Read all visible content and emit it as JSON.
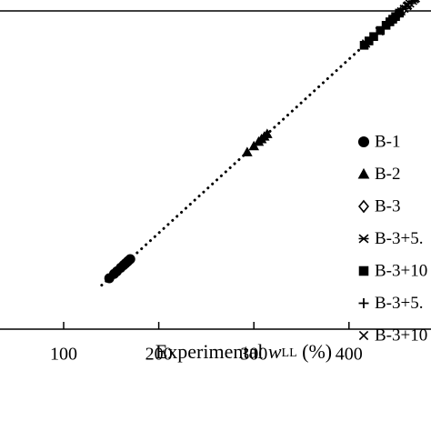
{
  "chart_data": {
    "type": "scatter",
    "xlabel": {
      "prefix": "Experimental ",
      "variable": "w",
      "subscript": "LL",
      "suffix": " (%)"
    },
    "xlim": [
      0,
      480
    ],
    "ylim": [
      0,
      480
    ],
    "x_ticks": [
      100,
      200,
      300,
      400
    ],
    "grid": false,
    "legend_position": "right",
    "trend_line": {
      "style": "dotted",
      "x": [
        140,
        475
      ],
      "y": [
        140,
        475
      ]
    },
    "series": [
      {
        "name": "B-1",
        "marker": "circle-filled",
        "points": [
          [
            148,
            148
          ],
          [
            153,
            153
          ],
          [
            156,
            156
          ],
          [
            160,
            160
          ],
          [
            163,
            163
          ],
          [
            165,
            165
          ],
          [
            167,
            167
          ],
          [
            168,
            168
          ],
          [
            170,
            170
          ]
        ]
      },
      {
        "name": "B-2",
        "marker": "triangle-filled",
        "points": [
          [
            293,
            293
          ],
          [
            300,
            300
          ],
          [
            305,
            305
          ],
          [
            308,
            308
          ],
          [
            311,
            311
          ],
          [
            314,
            314
          ]
        ]
      },
      {
        "name": "B-3",
        "marker": "diamond-open",
        "points": [
          [
            446,
            446
          ],
          [
            450,
            450
          ],
          [
            456,
            456
          ]
        ]
      },
      {
        "name": "B-3+5.",
        "marker": "asterisk",
        "points": [
          [
            458,
            458
          ],
          [
            461,
            461
          ],
          [
            464,
            464
          ],
          [
            467,
            467
          ],
          [
            470,
            470
          ]
        ]
      },
      {
        "name": "B-3+10",
        "marker": "square-filled",
        "points": [
          [
            416,
            416
          ],
          [
            421,
            421
          ],
          [
            426,
            426
          ],
          [
            433,
            433
          ],
          [
            439,
            439
          ],
          [
            443,
            443
          ],
          [
            446,
            446
          ],
          [
            449,
            449
          ],
          [
            453,
            453
          ]
        ]
      },
      {
        "name": "B-3+5.",
        "marker": "plus",
        "points": [
          [
            443,
            443
          ],
          [
            452,
            452
          ],
          [
            460,
            460
          ],
          [
            466,
            466
          ],
          [
            472,
            472
          ]
        ]
      },
      {
        "name": "B-3+10",
        "marker": "cross",
        "points": [
          [
            418,
            418
          ],
          [
            426,
            426
          ],
          [
            432,
            432
          ],
          [
            455,
            455
          ],
          [
            462,
            462
          ],
          [
            469,
            469
          ],
          [
            474,
            474
          ]
        ]
      }
    ]
  }
}
